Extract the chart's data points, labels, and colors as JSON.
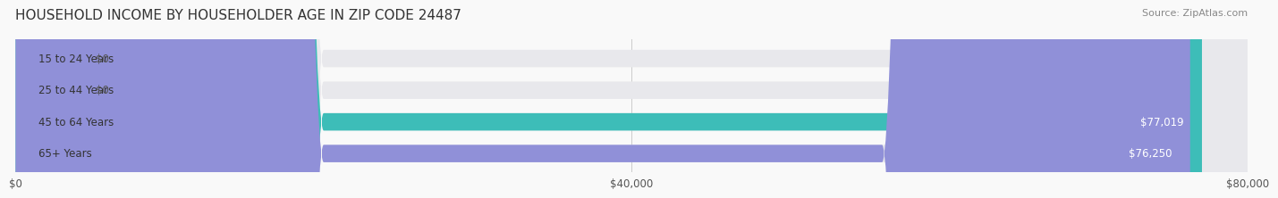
{
  "title": "HOUSEHOLD INCOME BY HOUSEHOLDER AGE IN ZIP CODE 24487",
  "source": "Source: ZipAtlas.com",
  "categories": [
    "15 to 24 Years",
    "25 to 44 Years",
    "45 to 64 Years",
    "65+ Years"
  ],
  "values": [
    0,
    0,
    77019,
    76250
  ],
  "max_value": 80000,
  "bar_colors": [
    "#7eb8d4",
    "#b09cc8",
    "#3dbdb8",
    "#9090d8"
  ],
  "bg_colors": [
    "#eeeeee",
    "#eeeeee",
    "#eeeeee",
    "#eeeeee"
  ],
  "value_labels": [
    "$0",
    "$0",
    "$77,019",
    "$76,250"
  ],
  "x_ticks": [
    0,
    40000,
    80000
  ],
  "x_tick_labels": [
    "$0",
    "$40,000",
    "$80,000"
  ],
  "title_fontsize": 11,
  "source_fontsize": 8,
  "label_fontsize": 8.5,
  "value_fontsize": 8.5,
  "bar_height": 0.55,
  "background_color": "#f9f9f9"
}
